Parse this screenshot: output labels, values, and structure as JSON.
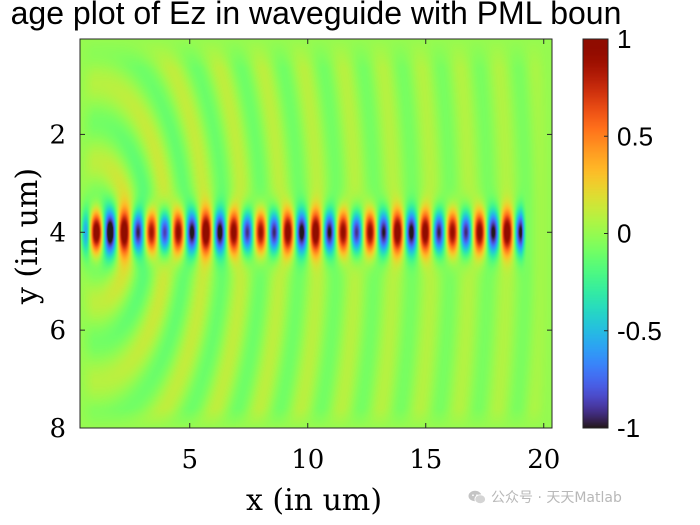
{
  "chart_data": {
    "type": "heatmap",
    "title": "age plot of Ez in waveguide with PML boun",
    "xlabel": "x (in um)",
    "ylabel": "y (in um)",
    "xlim": [
      0.35,
      20.35
    ],
    "ylim": [
      0.05,
      8.0
    ],
    "y_direction": "reverse",
    "x_ticks": [
      5,
      10,
      15,
      20
    ],
    "x_tick_labels": [
      "5",
      "10",
      "15",
      "20"
    ],
    "y_ticks": [
      2,
      4,
      6,
      8
    ],
    "y_tick_labels": [
      "2",
      "4",
      "6",
      "8"
    ],
    "colorbar": {
      "colormap": "turbo",
      "clim": [
        -1,
        1
      ],
      "ticks": [
        1,
        0.5,
        0,
        -0.5,
        -1
      ],
      "tick_labels": [
        "1",
        "0.5",
        "0",
        "-0.5",
        "-1"
      ]
    },
    "field": {
      "component": "Ez",
      "source_x": 1.0,
      "waveguide_center_y": 4.0,
      "waveguide_x_range": [
        0.35,
        19.3
      ],
      "guided_period": 1.16,
      "guided_half_width_y": 0.55,
      "guided_peak": 1.0,
      "radiation_wavelength": 1.6,
      "radiation_amplitude": 0.22,
      "pml_edges": [
        "left",
        "right",
        "top",
        "bottom"
      ]
    }
  },
  "watermark": {
    "text": "公众号 · 天天Matlab",
    "icon": "wechat-icon"
  }
}
